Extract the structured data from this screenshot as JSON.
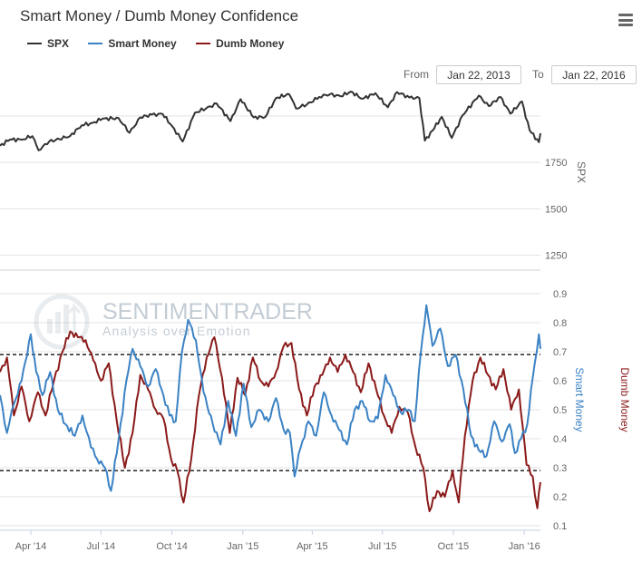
{
  "chart_data": {
    "type": "line",
    "title": "Smart Money / Dumb Money Confidence",
    "legend": [
      "SPX",
      "Smart Money",
      "Dumb Money"
    ],
    "colors": {
      "spx": "#333333",
      "smart": "#3b82c4",
      "dumb": "#8b1a1a"
    },
    "range": {
      "from_label": "From",
      "from_value": "Jan 22, 2013",
      "to_label": "To",
      "to_value": "Jan 22, 2016"
    },
    "x_ticks": [
      "Apr '14",
      "Jul '14",
      "Oct '14",
      "Jan '15",
      "Apr '15",
      "Jul '15",
      "Oct '15",
      "Jan '16"
    ],
    "spx_axis": {
      "label": "SPX",
      "ticks": [
        "1750",
        "1500",
        "1250"
      ],
      "range": [
        1170,
        2170
      ]
    },
    "confidence_axis": {
      "left_label": "Smart Money",
      "right_label": "Dumb Money",
      "ticks": [
        "0.9",
        "0.8",
        "0.7",
        "0.6",
        "0.5",
        "0.4",
        "0.3",
        "0.2",
        "0.1"
      ],
      "range": [
        0.1,
        0.9
      ]
    },
    "reference_lines": [
      0.69,
      0.29
    ],
    "watermark": {
      "brand": "SENTIMENTRADER",
      "tagline": "Analysis over Emotion"
    },
    "series": [
      {
        "name": "SPX",
        "axis": "spx",
        "points": [
          [
            "2014-02-20",
            1840
          ],
          [
            "2014-03-05",
            1873
          ],
          [
            "2014-03-20",
            1872
          ],
          [
            "2014-04-03",
            1891
          ],
          [
            "2014-04-11",
            1815
          ],
          [
            "2014-04-25",
            1863
          ],
          [
            "2014-05-08",
            1875
          ],
          [
            "2014-05-22",
            1892
          ],
          [
            "2014-06-06",
            1949
          ],
          [
            "2014-06-20",
            1962
          ],
          [
            "2014-07-03",
            1985
          ],
          [
            "2014-07-24",
            1987
          ],
          [
            "2014-08-07",
            1909
          ],
          [
            "2014-08-21",
            1992
          ],
          [
            "2014-09-05",
            2007
          ],
          [
            "2014-09-19",
            2010
          ],
          [
            "2014-10-01",
            1946
          ],
          [
            "2014-10-15",
            1862
          ],
          [
            "2014-10-31",
            2018
          ],
          [
            "2014-11-14",
            2039
          ],
          [
            "2014-11-28",
            2067
          ],
          [
            "2014-12-16",
            1972
          ],
          [
            "2014-12-29",
            2090
          ],
          [
            "2015-01-15",
            1992
          ],
          [
            "2015-01-30",
            1994
          ],
          [
            "2015-02-13",
            2096
          ],
          [
            "2015-03-02",
            2117
          ],
          [
            "2015-03-11",
            2040
          ],
          [
            "2015-03-25",
            2061
          ],
          [
            "2015-04-10",
            2102
          ],
          [
            "2015-04-24",
            2117
          ],
          [
            "2015-05-08",
            2105
          ],
          [
            "2015-05-21",
            2131
          ],
          [
            "2015-06-05",
            2092
          ],
          [
            "2015-06-22",
            2122
          ],
          [
            "2015-07-08",
            2046
          ],
          [
            "2015-07-20",
            2128
          ],
          [
            "2015-08-05",
            2099
          ],
          [
            "2015-08-18",
            2096
          ],
          [
            "2015-08-25",
            1867
          ],
          [
            "2015-09-04",
            1921
          ],
          [
            "2015-09-16",
            1995
          ],
          [
            "2015-09-29",
            1881
          ],
          [
            "2015-10-13",
            2003
          ],
          [
            "2015-11-03",
            2109
          ],
          [
            "2015-11-16",
            2053
          ],
          [
            "2015-12-01",
            2102
          ],
          [
            "2015-12-14",
            2012
          ],
          [
            "2015-12-29",
            2078
          ],
          [
            "2016-01-08",
            1922
          ],
          [
            "2016-01-20",
            1859
          ],
          [
            "2016-01-22",
            1906
          ]
        ]
      },
      {
        "name": "Smart Money",
        "axis": "confidence",
        "points": [
          [
            "2014-02-20",
            0.55
          ],
          [
            "2014-03-01",
            0.42
          ],
          [
            "2014-03-10",
            0.52
          ],
          [
            "2014-03-20",
            0.6
          ],
          [
            "2014-04-01",
            0.76
          ],
          [
            "2014-04-08",
            0.63
          ],
          [
            "2014-04-16",
            0.55
          ],
          [
            "2014-04-26",
            0.63
          ],
          [
            "2014-05-06",
            0.5
          ],
          [
            "2014-05-16",
            0.45
          ],
          [
            "2014-05-28",
            0.41
          ],
          [
            "2014-06-07",
            0.48
          ],
          [
            "2014-06-18",
            0.37
          ],
          [
            "2014-06-26",
            0.33
          ],
          [
            "2014-07-06",
            0.3
          ],
          [
            "2014-07-14",
            0.22
          ],
          [
            "2014-07-24",
            0.4
          ],
          [
            "2014-08-03",
            0.6
          ],
          [
            "2014-08-11",
            0.71
          ],
          [
            "2014-08-21",
            0.65
          ],
          [
            "2014-08-31",
            0.58
          ],
          [
            "2014-09-10",
            0.64
          ],
          [
            "2014-09-20",
            0.55
          ],
          [
            "2014-09-28",
            0.48
          ],
          [
            "2014-10-06",
            0.46
          ],
          [
            "2014-10-14",
            0.7
          ],
          [
            "2014-10-22",
            0.81
          ],
          [
            "2014-11-01",
            0.74
          ],
          [
            "2014-11-11",
            0.56
          ],
          [
            "2014-11-23",
            0.45
          ],
          [
            "2014-12-03",
            0.38
          ],
          [
            "2014-12-13",
            0.53
          ],
          [
            "2014-12-23",
            0.41
          ],
          [
            "2015-01-02",
            0.59
          ],
          [
            "2015-01-12",
            0.44
          ],
          [
            "2015-01-22",
            0.5
          ],
          [
            "2015-02-03",
            0.46
          ],
          [
            "2015-02-13",
            0.54
          ],
          [
            "2015-02-23",
            0.43
          ],
          [
            "2015-03-03",
            0.42
          ],
          [
            "2015-03-09",
            0.27
          ],
          [
            "2015-03-17",
            0.37
          ],
          [
            "2015-03-27",
            0.46
          ],
          [
            "2015-04-06",
            0.41
          ],
          [
            "2015-04-16",
            0.56
          ],
          [
            "2015-04-26",
            0.48
          ],
          [
            "2015-05-06",
            0.43
          ],
          [
            "2015-05-16",
            0.38
          ],
          [
            "2015-05-26",
            0.5
          ],
          [
            "2015-06-05",
            0.53
          ],
          [
            "2015-06-15",
            0.46
          ],
          [
            "2015-06-25",
            0.47
          ],
          [
            "2015-07-05",
            0.62
          ],
          [
            "2015-07-15",
            0.55
          ],
          [
            "2015-07-25",
            0.49
          ],
          [
            "2015-08-04",
            0.5
          ],
          [
            "2015-08-12",
            0.46
          ],
          [
            "2015-08-20",
            0.7
          ],
          [
            "2015-08-27",
            0.86
          ],
          [
            "2015-09-04",
            0.72
          ],
          [
            "2015-09-14",
            0.78
          ],
          [
            "2015-09-24",
            0.65
          ],
          [
            "2015-10-04",
            0.69
          ],
          [
            "2015-10-14",
            0.57
          ],
          [
            "2015-10-24",
            0.41
          ],
          [
            "2015-11-03",
            0.36
          ],
          [
            "2015-11-13",
            0.34
          ],
          [
            "2015-11-23",
            0.46
          ],
          [
            "2015-12-03",
            0.39
          ],
          [
            "2015-12-13",
            0.45
          ],
          [
            "2015-12-20",
            0.35
          ],
          [
            "2015-12-28",
            0.4
          ],
          [
            "2016-01-05",
            0.45
          ],
          [
            "2016-01-12",
            0.61
          ],
          [
            "2016-01-20",
            0.76
          ],
          [
            "2016-01-22",
            0.71
          ]
        ]
      },
      {
        "name": "Dumb Money",
        "axis": "confidence",
        "points": [
          [
            "2014-02-20",
            0.63
          ],
          [
            "2014-03-01",
            0.68
          ],
          [
            "2014-03-10",
            0.48
          ],
          [
            "2014-03-20",
            0.58
          ],
          [
            "2014-03-30",
            0.46
          ],
          [
            "2014-04-10",
            0.56
          ],
          [
            "2014-04-20",
            0.48
          ],
          [
            "2014-05-01",
            0.6
          ],
          [
            "2014-05-12",
            0.7
          ],
          [
            "2014-05-22",
            0.77
          ],
          [
            "2014-06-01",
            0.75
          ],
          [
            "2014-06-11",
            0.74
          ],
          [
            "2014-06-21",
            0.67
          ],
          [
            "2014-07-01",
            0.6
          ],
          [
            "2014-07-11",
            0.66
          ],
          [
            "2014-07-21",
            0.47
          ],
          [
            "2014-08-01",
            0.3
          ],
          [
            "2014-08-11",
            0.42
          ],
          [
            "2014-08-21",
            0.62
          ],
          [
            "2014-08-31",
            0.57
          ],
          [
            "2014-09-10",
            0.5
          ],
          [
            "2014-09-20",
            0.47
          ],
          [
            "2014-09-30",
            0.33
          ],
          [
            "2014-10-08",
            0.29
          ],
          [
            "2014-10-16",
            0.18
          ],
          [
            "2014-10-26",
            0.33
          ],
          [
            "2014-11-05",
            0.55
          ],
          [
            "2014-11-15",
            0.68
          ],
          [
            "2014-11-25",
            0.75
          ],
          [
            "2014-12-05",
            0.61
          ],
          [
            "2014-12-15",
            0.42
          ],
          [
            "2014-12-25",
            0.61
          ],
          [
            "2015-01-04",
            0.55
          ],
          [
            "2015-01-14",
            0.68
          ],
          [
            "2015-01-24",
            0.6
          ],
          [
            "2015-02-03",
            0.58
          ],
          [
            "2015-02-13",
            0.63
          ],
          [
            "2015-02-23",
            0.72
          ],
          [
            "2015-03-05",
            0.73
          ],
          [
            "2015-03-15",
            0.57
          ],
          [
            "2015-03-25",
            0.48
          ],
          [
            "2015-04-04",
            0.58
          ],
          [
            "2015-04-14",
            0.62
          ],
          [
            "2015-04-24",
            0.68
          ],
          [
            "2015-05-04",
            0.63
          ],
          [
            "2015-05-14",
            0.69
          ],
          [
            "2015-05-24",
            0.63
          ],
          [
            "2015-06-03",
            0.56
          ],
          [
            "2015-06-13",
            0.66
          ],
          [
            "2015-06-23",
            0.57
          ],
          [
            "2015-07-03",
            0.48
          ],
          [
            "2015-07-13",
            0.42
          ],
          [
            "2015-07-23",
            0.51
          ],
          [
            "2015-08-03",
            0.49
          ],
          [
            "2015-08-13",
            0.37
          ],
          [
            "2015-08-23",
            0.3
          ],
          [
            "2015-08-31",
            0.15
          ],
          [
            "2015-09-10",
            0.22
          ],
          [
            "2015-09-20",
            0.2
          ],
          [
            "2015-09-30",
            0.29
          ],
          [
            "2015-10-08",
            0.18
          ],
          [
            "2015-10-16",
            0.41
          ],
          [
            "2015-10-26",
            0.6
          ],
          [
            "2015-11-05",
            0.68
          ],
          [
            "2015-11-15",
            0.62
          ],
          [
            "2015-11-25",
            0.57
          ],
          [
            "2015-12-05",
            0.64
          ],
          [
            "2015-12-15",
            0.5
          ],
          [
            "2015-12-25",
            0.57
          ],
          [
            "2016-01-04",
            0.31
          ],
          [
            "2016-01-12",
            0.27
          ],
          [
            "2016-01-18",
            0.16
          ],
          [
            "2016-01-22",
            0.25
          ]
        ]
      }
    ]
  }
}
